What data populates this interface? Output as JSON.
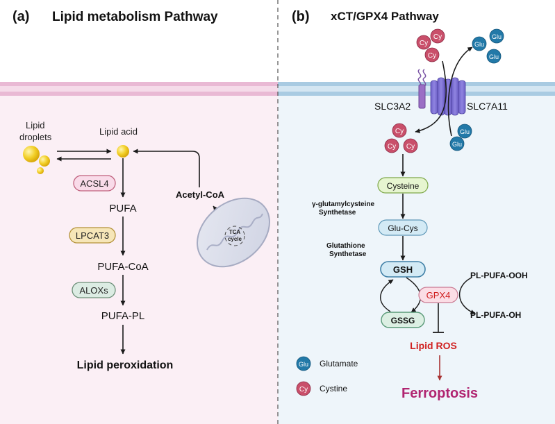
{
  "panel_a": {
    "label": "(a)",
    "title": "Lipid metabolism Pathway",
    "lipid_droplets_line1": "Lipid",
    "lipid_droplets_line2": "droplets",
    "lipid_acid": "Lipid acid",
    "acsl4": "ACSL4",
    "pufa": "PUFA",
    "lpcat3": "LPCAT3",
    "pufa_coa": "PUFA-CoA",
    "aloxs": "ALOXs",
    "pufa_pl": "PUFA-PL",
    "lipid_peroxidation": "Lipid peroxidation",
    "acetyl_coa": "Acetyl-CoA",
    "tca_line1": "TCA",
    "tca_line2": "cycle"
  },
  "panel_b": {
    "label": "(b)",
    "title": "xCT/GPX4 Pathway",
    "slc3a2": "SLC3A2",
    "slc7a11": "SLC7A11",
    "cy": "Cy",
    "glu": "Glu",
    "cysteine": "Cysteine",
    "gamma_line1": "γ-glutamylcysteine",
    "gamma_line2": "Synthetase",
    "glu_cys": "Glu-Cys",
    "gs_line1": "Glutathione",
    "gs_line2": "Synthetase",
    "gsh": "GSH",
    "gssg": "GSSG",
    "gpx4": "GPX4",
    "pl_pufa_ooh": "PL-PUFA-OOH",
    "pl_pufa_oh": "PL-PUFA-OH",
    "lipid_ros": "Lipid ROS",
    "ferroptosis": "Ferroptosis",
    "legend_glu_label": "Glutamate",
    "legend_cy_label": "Cystine"
  },
  "colors": {
    "left_bg": "#fbeff5",
    "right_bg": "#eef5fa",
    "membrane_left": "#e9b9d4",
    "membrane_right": "#a9cbe2",
    "acsl4_fill": "#f9dbe9",
    "lpcat3_fill": "#f6e6b8",
    "aloxs_fill": "#dcece3",
    "cysteine_fill": "#e6f5d0",
    "glucys_fill": "#d3eaf5",
    "gsh_fill": "#d3eaf5",
    "gssg_fill": "#dcefe3",
    "gpx4_fill": "#fbdde5",
    "cy_ball": "#c94f6a",
    "glu_ball": "#2279a8",
    "lipid_ros": "#d02020",
    "ferroptosis": "#b02470"
  }
}
